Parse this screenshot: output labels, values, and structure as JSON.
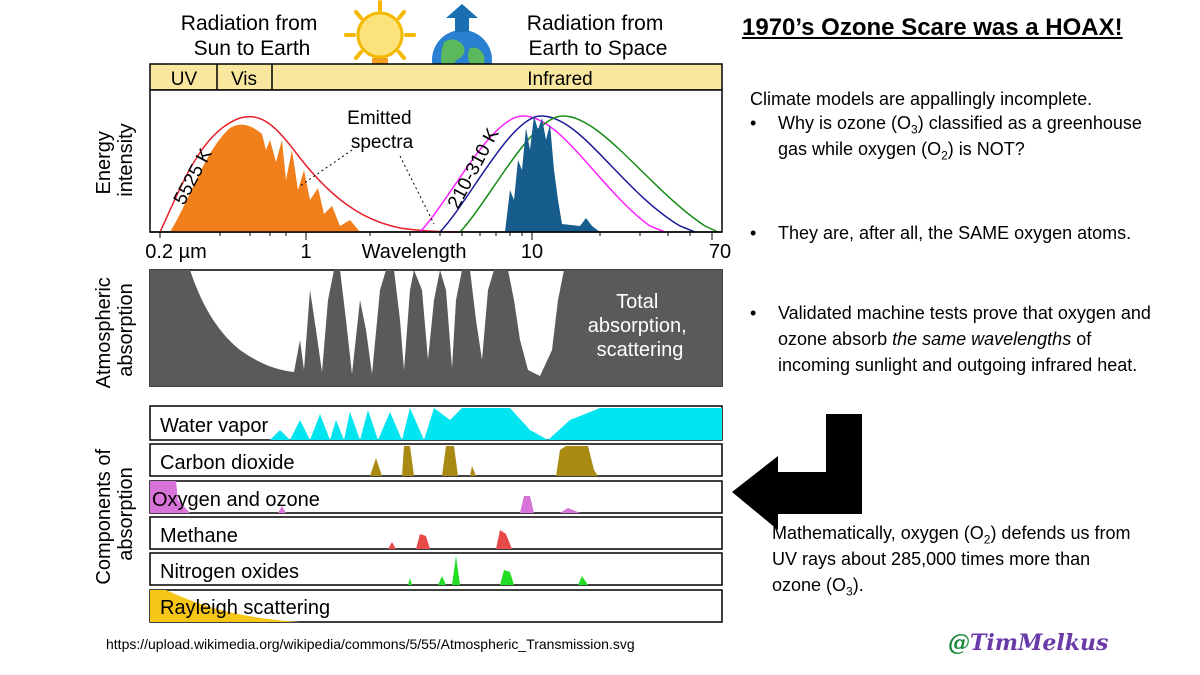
{
  "figure": {
    "header_left": "Radiation from\nSun to Earth",
    "header_right": "Radiation from\nEarth to Space",
    "band_uv": "UV",
    "band_vis": "Vis",
    "band_ir": "Infrared",
    "energy_axis_label": "Energy\nintensity",
    "label_sun_temp": "5525 K",
    "label_emitted": "Emitted\nspectra",
    "label_earth_temp": "210-310 K",
    "x_ticks": [
      "0.2 µm",
      "1",
      "Wavelength",
      "10",
      "70"
    ],
    "absorption_axis_label": "Atmospheric\nabsorption",
    "total_label": "Total\nabsorption,\nscattering",
    "components_axis_label": "Components of\nabsorption",
    "components": [
      "Water vapor",
      "Carbon dioxide",
      "Oxygen and ozone",
      "Methane",
      "Nitrogen oxides",
      "Rayleigh scattering"
    ],
    "colors": {
      "band_fill": "#f9e7a0",
      "sun_curve": "#e8202a",
      "sun_fill": "#f07f1c",
      "earth_fill": "#165c8c",
      "absorption_fill": "#5a5a5a",
      "water": "#00e5ef",
      "co2": "#a88a12",
      "oxygen": "#d773d9",
      "methane": "#e84a4a",
      "nitrogen": "#22dd22",
      "rayleigh": "#f5c518"
    }
  },
  "title": "1970’s Ozone Scare was a HOAX!",
  "intro": "Climate models are appallingly incomplete.",
  "bullets": {
    "b1_pre": "Why is ozone (O",
    "b1_sub1": "3",
    "b1_mid": ") classified as a greenhouse gas while oxygen (O",
    "b1_sub2": "2",
    "b1_post": ") is NOT?",
    "b2": "They are, after all, the SAME oxygen atoms.",
    "b3_pre": "Validated machine tests prove that oxygen and ozone absorb ",
    "b3_em": "the same wavelengths",
    "b3_post": " of incoming sunlight and outgoing infrared heat."
  },
  "math": {
    "pre": "Mathematically, oxygen (O",
    "sub1": "2",
    "mid": ") defends us from UV rays about 285,000 times more than ozone (O",
    "sub2": "3",
    "post": ")."
  },
  "source": "https://upload.wikimedia.org/wikipedia/commons/5/55/Atmospheric_Transmission.svg",
  "handle_at": "@",
  "handle_name": "TimMelkus"
}
